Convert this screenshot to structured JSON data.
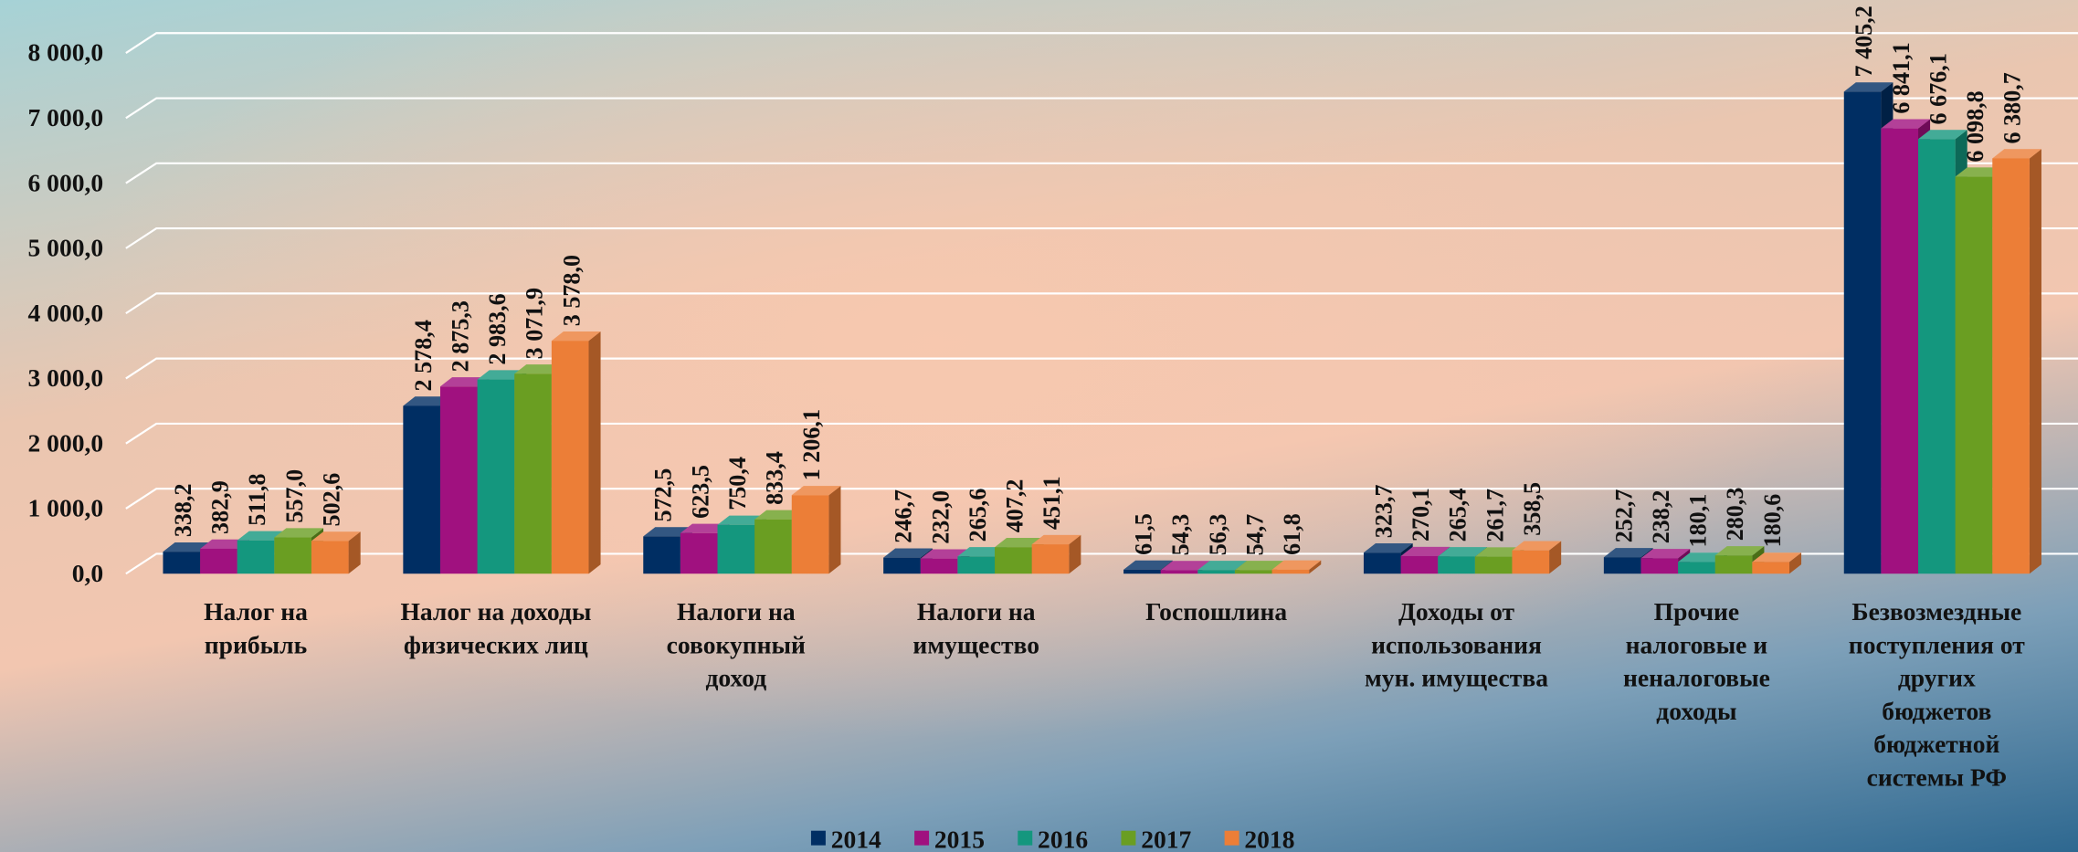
{
  "chart_data": {
    "type": "bar3d",
    "categories": [
      "Налог на\nприбыль",
      "Налог на доходы\nфизических лиц",
      "Налоги на\nсовокупный\nдоход",
      "Налоги на\nимущество",
      "Госпошлина",
      "Доходы от\nиспользования\nмун. имущества",
      "Прочие\nналоговые и\nненалоговые\nдоходы",
      "Безвозмездные\nпоступления от\nдругих\nбюджетов\nбюджетной\nсистемы РФ"
    ],
    "series": [
      {
        "name": "2014",
        "color": "#002e63",
        "values": [
          338.2,
          2578.4,
          572.5,
          246.7,
          61.5,
          323.7,
          252.7,
          7405.2
        ],
        "value_labels": [
          "338,2",
          "2 578,4",
          "572,5",
          "246,7",
          "61,5",
          "323,7",
          "252,7",
          "7 405,2"
        ]
      },
      {
        "name": "2015",
        "color": "#a0117f",
        "values": [
          382.9,
          2875.3,
          623.5,
          232.0,
          54.3,
          270.1,
          238.2,
          6841.1
        ],
        "value_labels": [
          "382,9",
          "2 875,3",
          "623,5",
          "232,0",
          "54,3",
          "270,1",
          "238,2",
          "6 841,1"
        ]
      },
      {
        "name": "2016",
        "color": "#14977e",
        "values": [
          511.8,
          2983.6,
          750.4,
          265.6,
          56.3,
          265.4,
          180.1,
          6676.1
        ],
        "value_labels": [
          "511,8",
          "2 983,6",
          "750,4",
          "265,6",
          "56,3",
          "265,4",
          "180,1",
          "6 676,1"
        ]
      },
      {
        "name": "2017",
        "color": "#6a9e22",
        "values": [
          557.0,
          3071.9,
          833.4,
          407.2,
          54.7,
          261.7,
          280.3,
          6098.8
        ],
        "value_labels": [
          "557,0",
          "3 071,9",
          "833,4",
          "407,2",
          "54,7",
          "261,7",
          "280,3",
          "6 098,8"
        ]
      },
      {
        "name": "2018",
        "color": "#ec7e37",
        "values": [
          502.6,
          3578.0,
          1206.1,
          451.1,
          61.8,
          358.5,
          180.6,
          6380.7
        ],
        "value_labels": [
          "502,6",
          "3 578,0",
          "1 206,1",
          "451,1",
          "61,8",
          "358,5",
          "180,6",
          "6 380,7"
        ]
      }
    ],
    "ylim": [
      0,
      8000
    ],
    "yticks": [
      {
        "value": 0,
        "label": "0,0"
      },
      {
        "value": 1000,
        "label": "1 000,0"
      },
      {
        "value": 2000,
        "label": "2 000,0"
      },
      {
        "value": 3000,
        "label": "3 000,0"
      },
      {
        "value": 4000,
        "label": "4 000,0"
      },
      {
        "value": 5000,
        "label": "5 000,0"
      },
      {
        "value": 6000,
        "label": "6 000,0"
      },
      {
        "value": 7000,
        "label": "7 000,0"
      },
      {
        "value": 8000,
        "label": "8 000,0"
      }
    ],
    "grid": true,
    "legend": "bottom"
  }
}
